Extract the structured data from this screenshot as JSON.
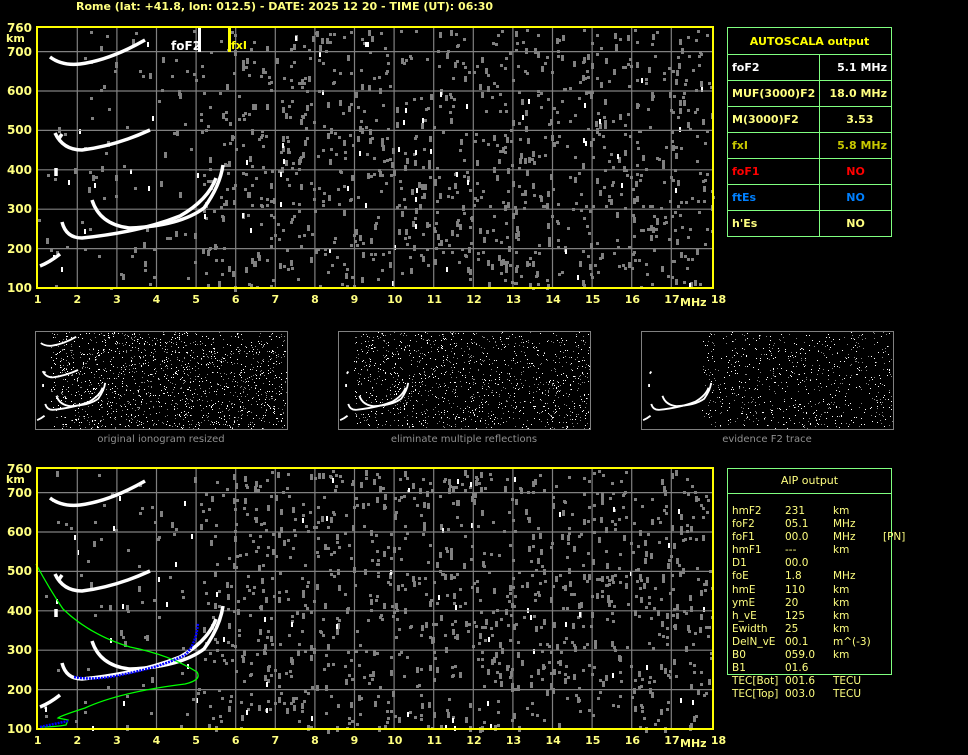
{
  "header": {
    "title": "Rome (lat: +41.8, lon: 012.5) - DATE: 2025 12 20 - TIME (UT): 06:30"
  },
  "axes": {
    "y_unit": "km",
    "x_unit": "MHz",
    "y_ticks": [
      "760",
      "700",
      "600",
      "500",
      "400",
      "300",
      "200",
      "100"
    ],
    "x_ticks": [
      "1",
      "2",
      "3",
      "4",
      "5",
      "6",
      "7",
      "8",
      "9",
      "10",
      "11",
      "12",
      "13",
      "14",
      "15",
      "16",
      "17",
      "18"
    ]
  },
  "markers": {
    "foF2_label": "foF2",
    "fxI_label": "fxI",
    "foF2_value": 5.1,
    "fxI_value": 5.8
  },
  "autoscala": {
    "title": "AUTOSCALA output",
    "rows": [
      {
        "label": "foF2",
        "value": "5.1 MHz",
        "color": "#ffffff"
      },
      {
        "label": "MUF(3000)F2",
        "value": "18.0 MHz",
        "color": "#ffff80"
      },
      {
        "label": "M(3000)F2",
        "value": "3.53",
        "color": "#ffff80"
      },
      {
        "label": "fxI",
        "value": "5.8 MHz",
        "color": "#c8c800"
      },
      {
        "label": "foF1",
        "value": "NO",
        "color": "#ff0000"
      },
      {
        "label": "ftEs",
        "value": "NO",
        "color": "#0080ff"
      },
      {
        "label": "h'Es",
        "value": "NO",
        "color": "#ffff80"
      }
    ]
  },
  "thumbnails": [
    {
      "caption": "original ionogram resized"
    },
    {
      "caption": "eliminate multiple reflections"
    },
    {
      "caption": "evidence F2 trace"
    }
  ],
  "aip": {
    "title": "AIP output",
    "rows": [
      [
        "hmF2",
        "231",
        "km",
        ""
      ],
      [
        "foF2",
        "05.1",
        "MHz",
        ""
      ],
      [
        "foF1",
        "00.0",
        "MHz",
        "[PN]"
      ],
      [
        "hmF1",
        "---",
        "km",
        ""
      ],
      [
        "D1",
        "00.0",
        "",
        ""
      ],
      [
        "foE",
        "1.8",
        "MHz",
        ""
      ],
      [
        "hmE",
        "110",
        "km",
        ""
      ],
      [
        "ymE",
        "20",
        "km",
        ""
      ],
      [
        "h_vE",
        "125",
        "km",
        ""
      ],
      [
        "Ewidth",
        "25",
        "km",
        ""
      ],
      [
        "DelN_vE",
        "00.1",
        "m^(-3)",
        ""
      ],
      [
        "B0",
        "059.0",
        "km",
        ""
      ],
      [
        "B1",
        "01.6",
        "",
        ""
      ],
      [
        "TEC[Bot]",
        "001.6",
        "TECU",
        ""
      ],
      [
        "TEC[Top]",
        "003.0",
        "TECU",
        ""
      ]
    ]
  },
  "colors": {
    "frame": "#ffff00",
    "grid": "#808080",
    "table_border": "#80ff80",
    "profile": "#00ff00",
    "trace_fit": "#0000ff"
  }
}
